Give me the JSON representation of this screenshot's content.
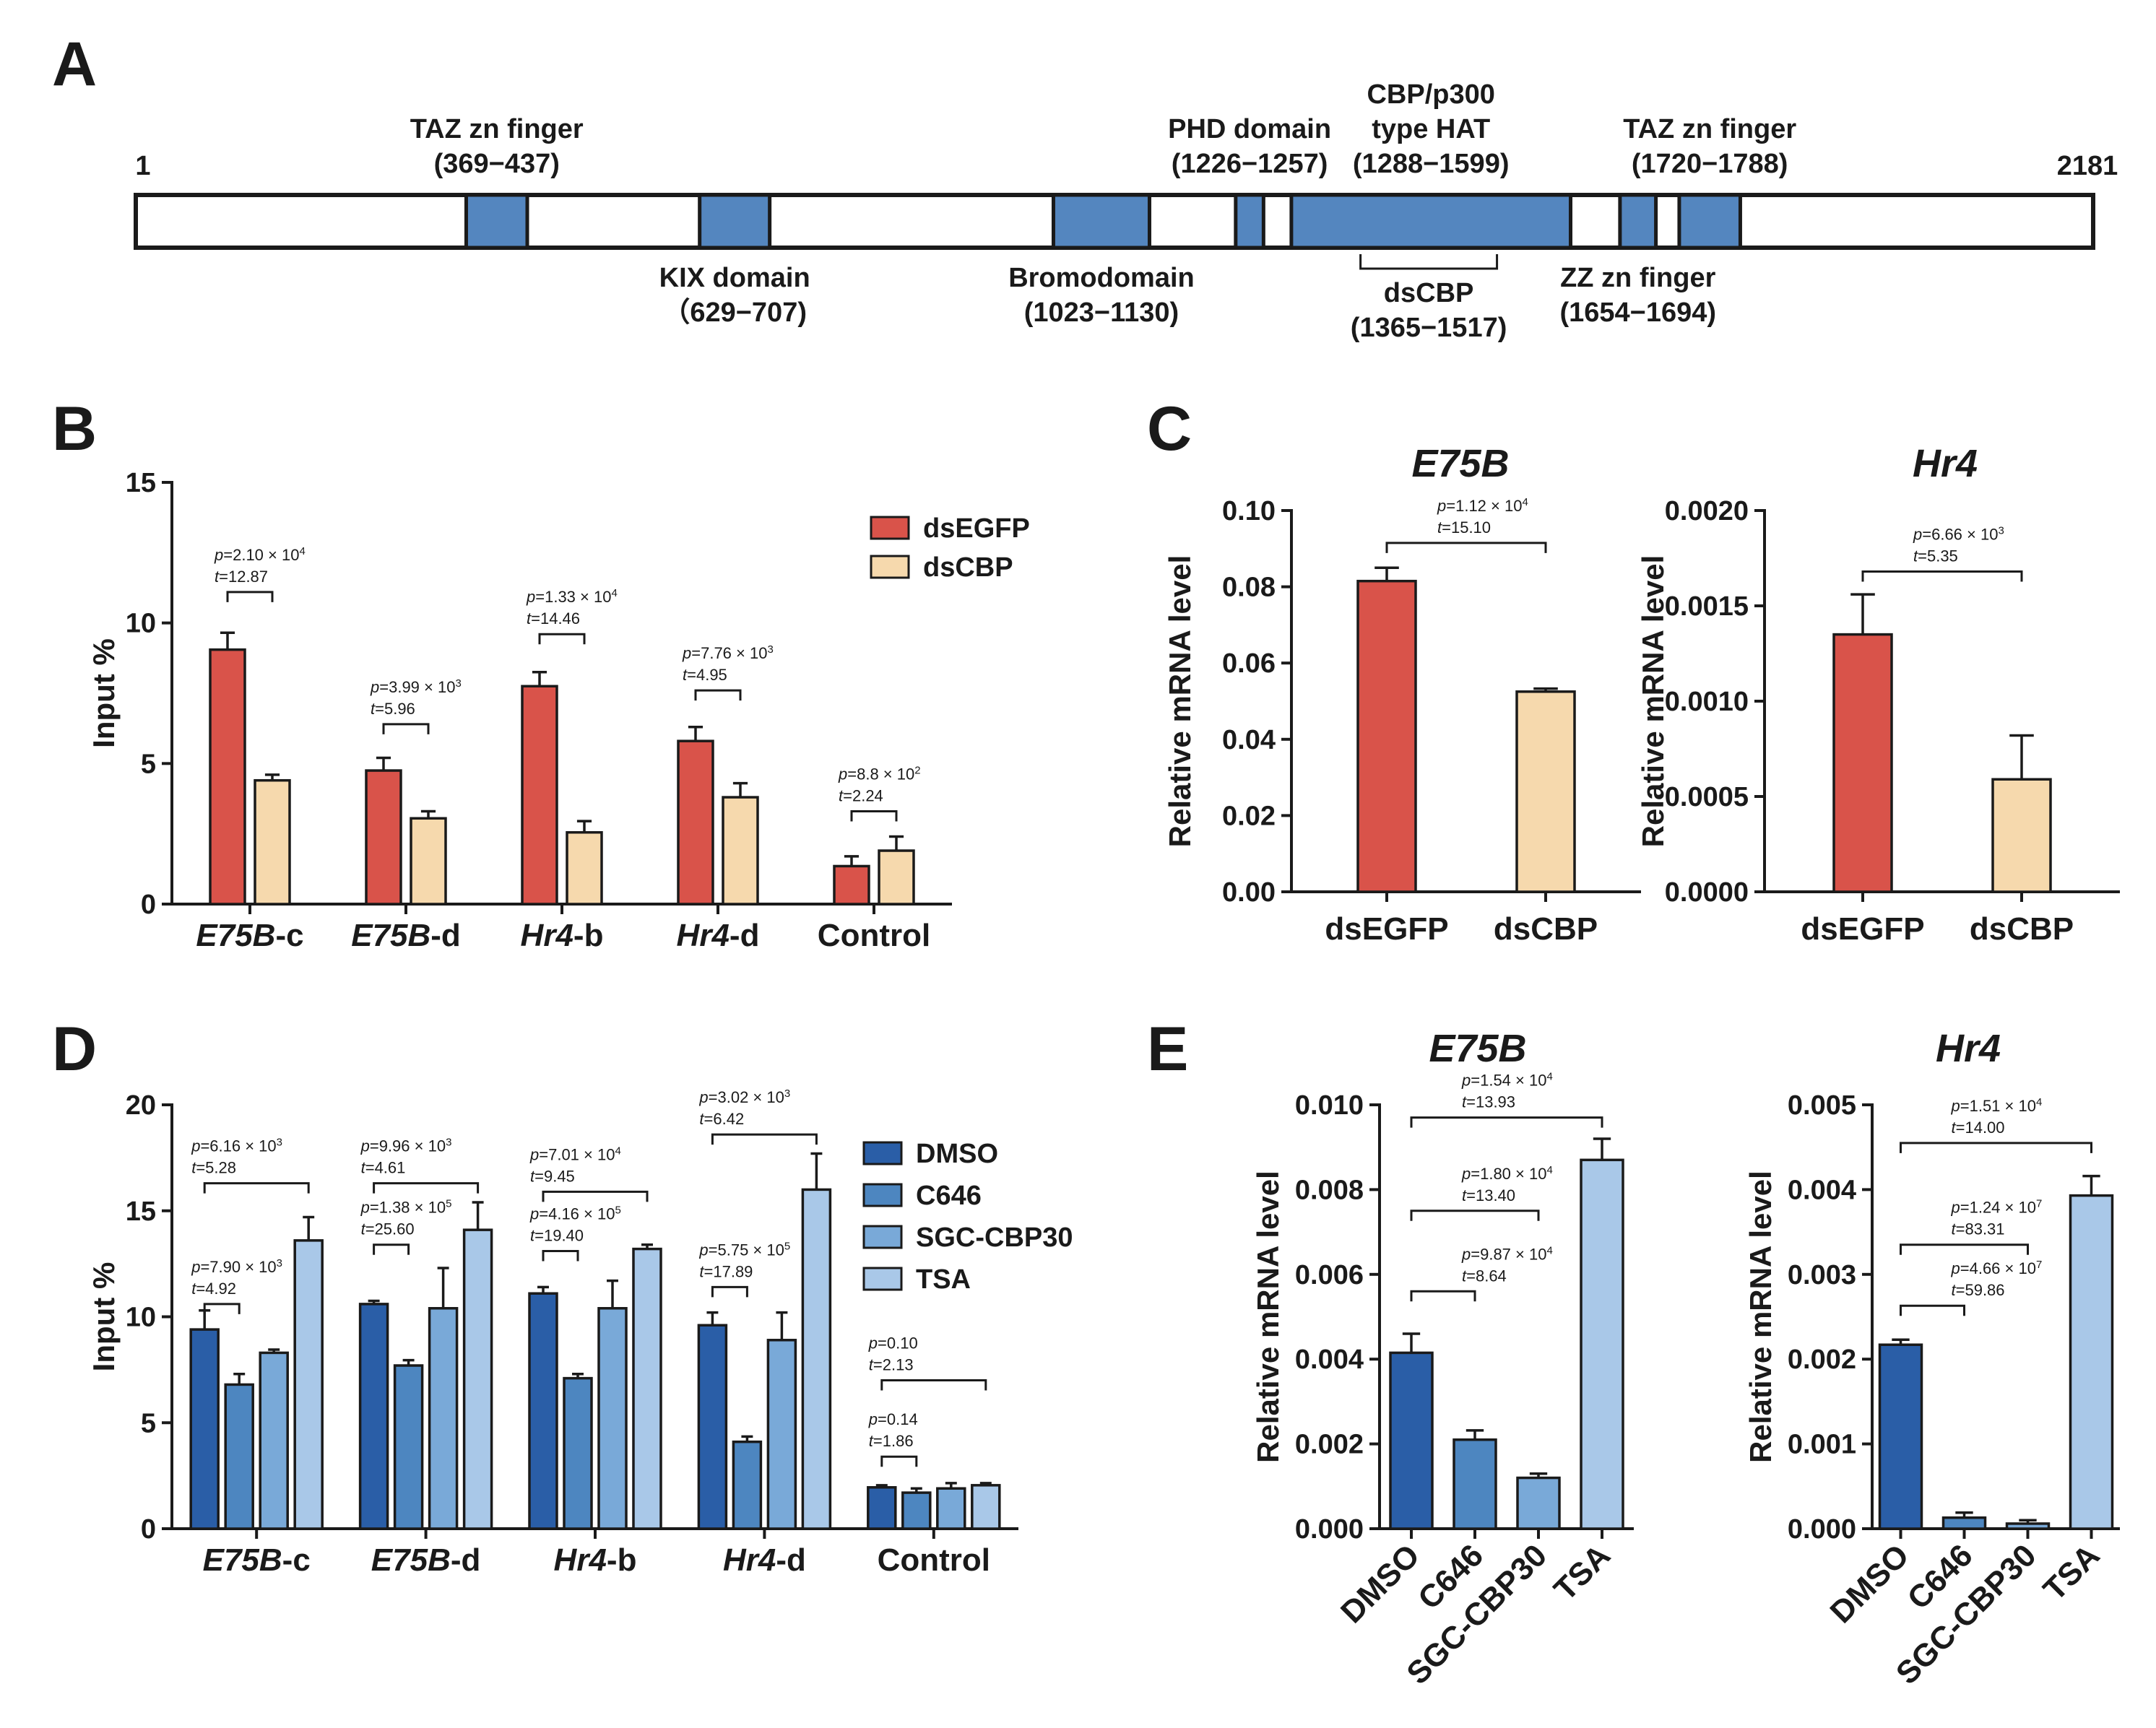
{
  "panels": {
    "A": {
      "label": "A",
      "start": "1",
      "end": "2181",
      "length": 2181,
      "domains": [
        {
          "name": "TAZ zn finger",
          "range": "(369−437)",
          "start": 369,
          "end": 437,
          "side": "above"
        },
        {
          "name": "KIX domain",
          "range": "（629−707)",
          "start": 629,
          "end": 707,
          "side": "below"
        },
        {
          "name": "Bromodomain",
          "range": "(1023−1130)",
          "start": 1023,
          "end": 1130,
          "side": "below"
        },
        {
          "name": "PHD domain",
          "range": "(1226−1257)",
          "start": 1226,
          "end": 1257,
          "side": "above"
        },
        {
          "name": "CBP/p300",
          "name2": "type HAT",
          "range": "(1288−1599)",
          "start": 1288,
          "end": 1599,
          "side": "above"
        },
        {
          "name": "ZZ zn finger",
          "range": "(1654−1694)",
          "start": 1654,
          "end": 1694,
          "side": "below"
        },
        {
          "name": "TAZ zn finger",
          "range": "(1720−1788)",
          "start": 1720,
          "end": 1788,
          "side": "above"
        }
      ],
      "dsCBP": {
        "name": "dsCBP",
        "range": "(1365−1517)",
        "start": 1365,
        "end": 1517
      }
    },
    "B": {
      "label": "B"
    },
    "C": {
      "label": "C"
    },
    "D": {
      "label": "D"
    },
    "E": {
      "label": "E"
    }
  },
  "colors": {
    "dsEGFP": "#d9534a",
    "dsCBP": "#f6d9ad",
    "DMSO": "#2a5ea7",
    "C646": "#4d86c0",
    "SGC-CBP30": "#79a9d8",
    "TSA": "#a9c8e8",
    "domain": "#5486bf"
  },
  "chart_data": [
    {
      "panel": "B",
      "type": "bar",
      "ylabel": "Input %",
      "ylim": [
        0,
        15
      ],
      "yticks": [
        "0",
        "5",
        "10",
        "15"
      ],
      "categories": [
        {
          "italic": "E75B",
          "rest": "-c"
        },
        {
          "italic": "E75B",
          "rest": "-d"
        },
        {
          "italic": "Hr4",
          "rest": "-b"
        },
        {
          "italic": "Hr4",
          "rest": "-d"
        },
        {
          "italic": "",
          "rest": "Control"
        }
      ],
      "legend": [
        "dsEGFP",
        "dsCBP"
      ],
      "series": [
        {
          "name": "dsEGFP",
          "values": [
            9.05,
            4.75,
            7.75,
            5.8,
            1.35
          ],
          "errors": [
            0.6,
            0.45,
            0.5,
            0.5,
            0.35
          ]
        },
        {
          "name": "dsCBP",
          "values": [
            4.4,
            3.05,
            2.55,
            3.8,
            1.9
          ],
          "errors": [
            0.2,
            0.25,
            0.4,
            0.5,
            0.5
          ]
        }
      ],
      "comparisons": [
        {
          "cat": 0,
          "a": 0,
          "b": 1,
          "y": 11.1,
          "p": "=2.10 × 10",
          "pexp": "4",
          "t": "=12.87"
        },
        {
          "cat": 1,
          "a": 0,
          "b": 1,
          "y": 6.4,
          "p": "=3.99 × 10",
          "pexp": "3",
          "t": "=5.96"
        },
        {
          "cat": 2,
          "a": 0,
          "b": 1,
          "y": 9.6,
          "p": "=1.33 × 10",
          "pexp": "4",
          "t": "=14.46"
        },
        {
          "cat": 3,
          "a": 0,
          "b": 1,
          "y": 7.6,
          "p": "=7.76 × 10",
          "pexp": "3",
          "t": "=4.95"
        },
        {
          "cat": 4,
          "a": 0,
          "b": 1,
          "y": 3.3,
          "p": "=8.8 × 10",
          "pexp": "2",
          "t": "=2.24"
        }
      ]
    },
    {
      "panel": "C1",
      "type": "bar",
      "title": "E75B",
      "ylabel": "Relative mRNA level",
      "ylim": [
        0,
        0.1
      ],
      "yticks": [
        "0.00",
        "0.02",
        "0.04",
        "0.06",
        "0.08",
        "0.10"
      ],
      "categories": [
        "dsEGFP",
        "dsCBP"
      ],
      "series": [
        {
          "name": "values",
          "values": [
            0.0815,
            0.0525
          ],
          "errors": [
            0.0035,
            0.0008
          ]
        }
      ],
      "bar_colors": [
        "#d9534a",
        "#f6d9ad"
      ],
      "comparisons": [
        {
          "a": 0,
          "b": 1,
          "y": 0.0915,
          "p": "=1.12 × 10",
          "pexp": "4",
          "t": "=15.10"
        }
      ]
    },
    {
      "panel": "C2",
      "type": "bar",
      "title": "Hr4",
      "ylabel": "Relative mRNA level",
      "ylim": [
        0,
        0.002
      ],
      "yticks": [
        "0.0000",
        "0.0005",
        "0.0010",
        "0.0015",
        "0.0020"
      ],
      "categories": [
        "dsEGFP",
        "dsCBP"
      ],
      "series": [
        {
          "name": "values",
          "values": [
            0.00135,
            0.00059
          ],
          "errors": [
            0.00021,
            0.00023
          ]
        }
      ],
      "bar_colors": [
        "#d9534a",
        "#f6d9ad"
      ],
      "comparisons": [
        {
          "a": 0,
          "b": 1,
          "y": 0.00168,
          "p": "=6.66 × 10",
          "pexp": "3",
          "t": "=5.35"
        }
      ]
    },
    {
      "panel": "D",
      "type": "bar",
      "ylabel": "Input %",
      "ylim": [
        0,
        20
      ],
      "yticks": [
        "0",
        "5",
        "10",
        "15",
        "20"
      ],
      "categories": [
        {
          "italic": "E75B",
          "rest": "-c"
        },
        {
          "italic": "E75B",
          "rest": "-d"
        },
        {
          "italic": "Hr4",
          "rest": "-b"
        },
        {
          "italic": "Hr4",
          "rest": "-d"
        },
        {
          "italic": "",
          "rest": "Control"
        }
      ],
      "legend": [
        "DMSO",
        "C646",
        "SGC-CBP30",
        "TSA"
      ],
      "series": [
        {
          "name": "DMSO",
          "values": [
            9.4,
            10.6,
            11.1,
            9.6,
            1.95
          ],
          "errors": [
            0.9,
            0.15,
            0.3,
            0.6,
            0.1
          ]
        },
        {
          "name": "C646",
          "values": [
            6.8,
            7.7,
            7.1,
            4.1,
            1.7
          ],
          "errors": [
            0.5,
            0.25,
            0.2,
            0.25,
            0.2
          ]
        },
        {
          "name": "SGC-CBP30",
          "values": [
            8.3,
            10.4,
            10.4,
            8.9,
            1.9
          ],
          "errors": [
            0.15,
            1.9,
            1.3,
            1.3,
            0.25
          ]
        },
        {
          "name": "TSA",
          "values": [
            13.6,
            14.1,
            13.2,
            16.0,
            2.05
          ],
          "errors": [
            1.1,
            1.3,
            0.2,
            1.7,
            0.1
          ]
        }
      ],
      "comparisons": [
        {
          "cat": 0,
          "a": 0,
          "b": 1,
          "y": 10.6,
          "p": "=7.90 × 10",
          "pexp": "3",
          "t": "=4.92"
        },
        {
          "cat": 0,
          "a": 0,
          "b": 3,
          "y": 16.3,
          "p": "=6.16 × 10",
          "pexp": "3",
          "t": "=5.28"
        },
        {
          "cat": 1,
          "a": 0,
          "b": 1,
          "y": 13.4,
          "p": "=1.38 × 10",
          "pexp": "5",
          "t": "=25.60"
        },
        {
          "cat": 1,
          "a": 0,
          "b": 3,
          "y": 16.3,
          "p": "=9.96 × 10",
          "pexp": "3",
          "t": "=4.61"
        },
        {
          "cat": 2,
          "a": 0,
          "b": 1,
          "y": 13.1,
          "p": "=4.16 × 10",
          "pexp": "5",
          "t": "=19.40"
        },
        {
          "cat": 2,
          "a": 0,
          "b": 3,
          "y": 15.9,
          "p": "=7.01 × 10",
          "pexp": "4",
          "t": "=9.45"
        },
        {
          "cat": 3,
          "a": 0,
          "b": 1,
          "y": 11.4,
          "p": "=5.75 × 10",
          "pexp": "5",
          "t": "=17.89"
        },
        {
          "cat": 3,
          "a": 0,
          "b": 3,
          "y": 18.6,
          "p": "=3.02 × 10",
          "pexp": "3",
          "t": "=6.42"
        },
        {
          "cat": 4,
          "a": 0,
          "b": 1,
          "y": 3.4,
          "p": "=0.14",
          "pexp": "",
          "t": "=1.86"
        },
        {
          "cat": 4,
          "a": 0,
          "b": 3,
          "y": 7.0,
          "p": "=0.10",
          "pexp": "",
          "t": "=2.13"
        }
      ]
    },
    {
      "panel": "E1",
      "type": "bar",
      "title": "E75B",
      "ylabel": "Relative mRNA level",
      "ylim": [
        0,
        0.01
      ],
      "yticks": [
        "0.000",
        "0.002",
        "0.004",
        "0.006",
        "0.008",
        "0.010"
      ],
      "categories": [
        "DMSO",
        "C646",
        "SGC-CBP30",
        "TSA"
      ],
      "series": [
        {
          "name": "values",
          "values": [
            0.00415,
            0.0021,
            0.0012,
            0.0087
          ],
          "errors": [
            0.00045,
            0.00022,
            0.0001,
            0.0005
          ]
        }
      ],
      "bar_colors": [
        "#2a5ea7",
        "#4d86c0",
        "#79a9d8",
        "#a9c8e8"
      ],
      "comparisons": [
        {
          "a": 0,
          "b": 1,
          "y": 0.0056,
          "p": "=9.87 × 10",
          "pexp": "4",
          "t": "=8.64"
        },
        {
          "a": 0,
          "b": 2,
          "y": 0.0075,
          "p": "=1.80 × 10",
          "pexp": "4",
          "t": "=13.40"
        },
        {
          "a": 0,
          "b": 3,
          "y": 0.0097,
          "p": "=1.54 × 10",
          "pexp": "4",
          "t": "=13.93"
        }
      ]
    },
    {
      "panel": "E2",
      "type": "bar",
      "title": "Hr4",
      "ylabel": "Relative mRNA level",
      "ylim": [
        0,
        0.005
      ],
      "yticks": [
        "0.000",
        "0.001",
        "0.002",
        "0.003",
        "0.004",
        "0.005"
      ],
      "categories": [
        "DMSO",
        "C646",
        "SGC-CBP30",
        "TSA"
      ],
      "series": [
        {
          "name": "values",
          "values": [
            0.00217,
            0.00013,
            6e-05,
            0.00393
          ],
          "errors": [
            6e-05,
            6e-05,
            4e-05,
            0.00023
          ]
        }
      ],
      "bar_colors": [
        "#2a5ea7",
        "#4d86c0",
        "#79a9d8",
        "#a9c8e8"
      ],
      "comparisons": [
        {
          "a": 0,
          "b": 1,
          "y": 0.00263,
          "p": "=4.66 × 10",
          "pexp": "7",
          "t": "=59.86"
        },
        {
          "a": 0,
          "b": 2,
          "y": 0.00335,
          "p": "=1.24 × 10",
          "pexp": "7",
          "t": "=83.31"
        },
        {
          "a": 0,
          "b": 3,
          "y": 0.00455,
          "p": "=1.51 × 10",
          "pexp": "4",
          "t": "=14.00"
        }
      ]
    }
  ]
}
